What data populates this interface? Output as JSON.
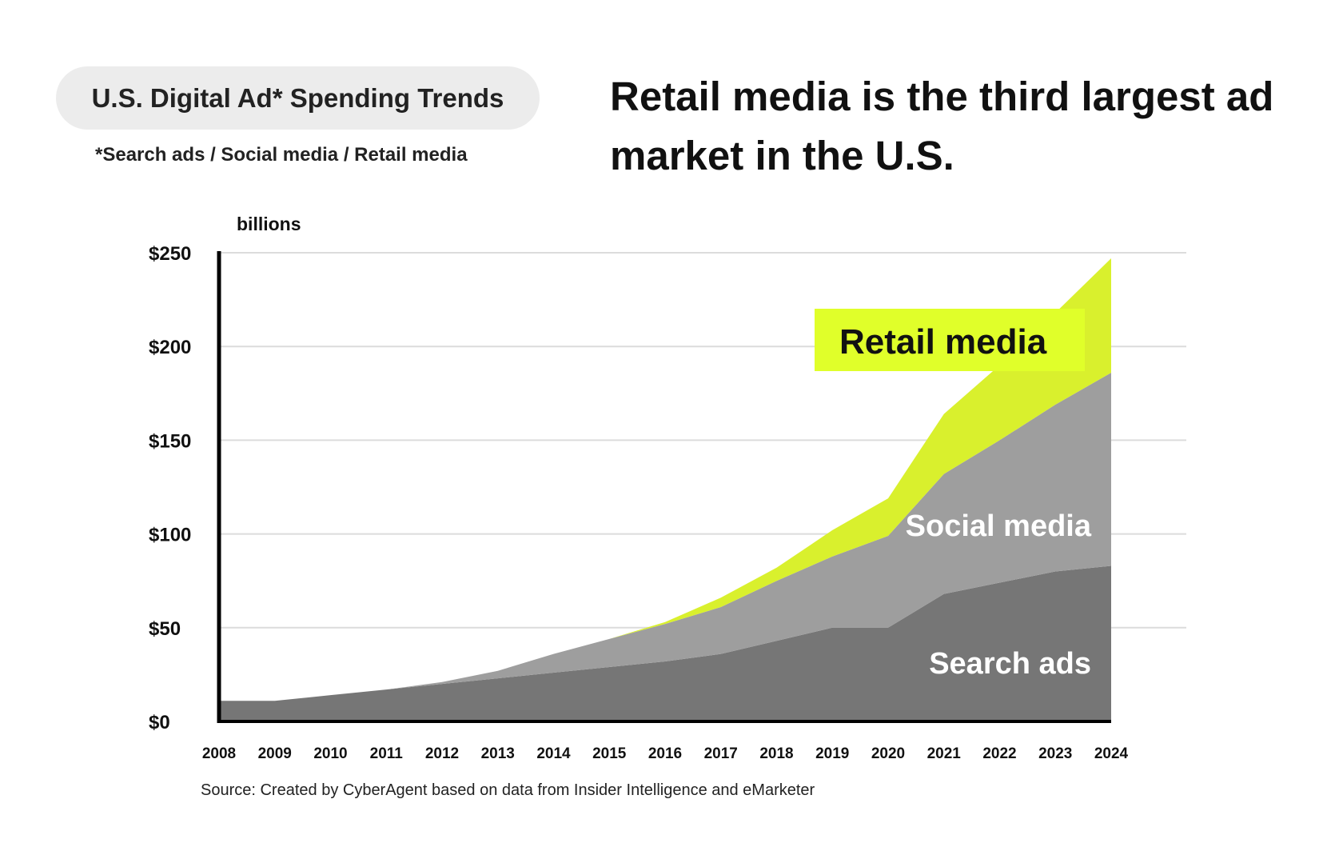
{
  "header": {
    "pill_title": "U.S. Digital Ad* Spending Trends",
    "footnote": "*Search ads / Social media / Retail media",
    "headline": "Retail media is the third largest ad market in the U.S."
  },
  "source": "Source: Created by CyberAgent based on data from Insider Intelligence and eMarketer",
  "chart_data": {
    "type": "area",
    "stacked": true,
    "title": "U.S. Digital Ad* Spending Trends",
    "ylabel": "billions",
    "xlabel": "",
    "ylim": [
      0,
      250
    ],
    "yticks": [
      0,
      50,
      100,
      150,
      200,
      250
    ],
    "ytick_labels": [
      "$0",
      "$50",
      "$100",
      "$150",
      "$200",
      "$250"
    ],
    "grid": true,
    "categories": [
      "2008",
      "2009",
      "2010",
      "2011",
      "2012",
      "2013",
      "2014",
      "2015",
      "2016",
      "2017",
      "2018",
      "2019",
      "2020",
      "2021",
      "2022",
      "2023",
      "2024"
    ],
    "series": [
      {
        "name": "Search ads",
        "color": "#767676",
        "label_color": "#ffffff",
        "values": [
          11,
          11,
          14,
          17,
          20,
          23,
          26,
          29,
          32,
          36,
          43,
          50,
          50,
          68,
          74,
          80,
          83
        ]
      },
      {
        "name": "Social media",
        "color": "#9e9e9e",
        "label_color": "#ffffff",
        "values": [
          0,
          0,
          0,
          0,
          1,
          4,
          10,
          15,
          20,
          25,
          32,
          38,
          49,
          64,
          76,
          89,
          103
        ]
      },
      {
        "name": "Retail media",
        "color": "#d9f02d",
        "label_color": "#111111",
        "label_bg": "#e0ff2a",
        "values": [
          0,
          0,
          0,
          0,
          0,
          0,
          0,
          0,
          1,
          5,
          7,
          14,
          20,
          32,
          40,
          49,
          61
        ]
      }
    ]
  }
}
